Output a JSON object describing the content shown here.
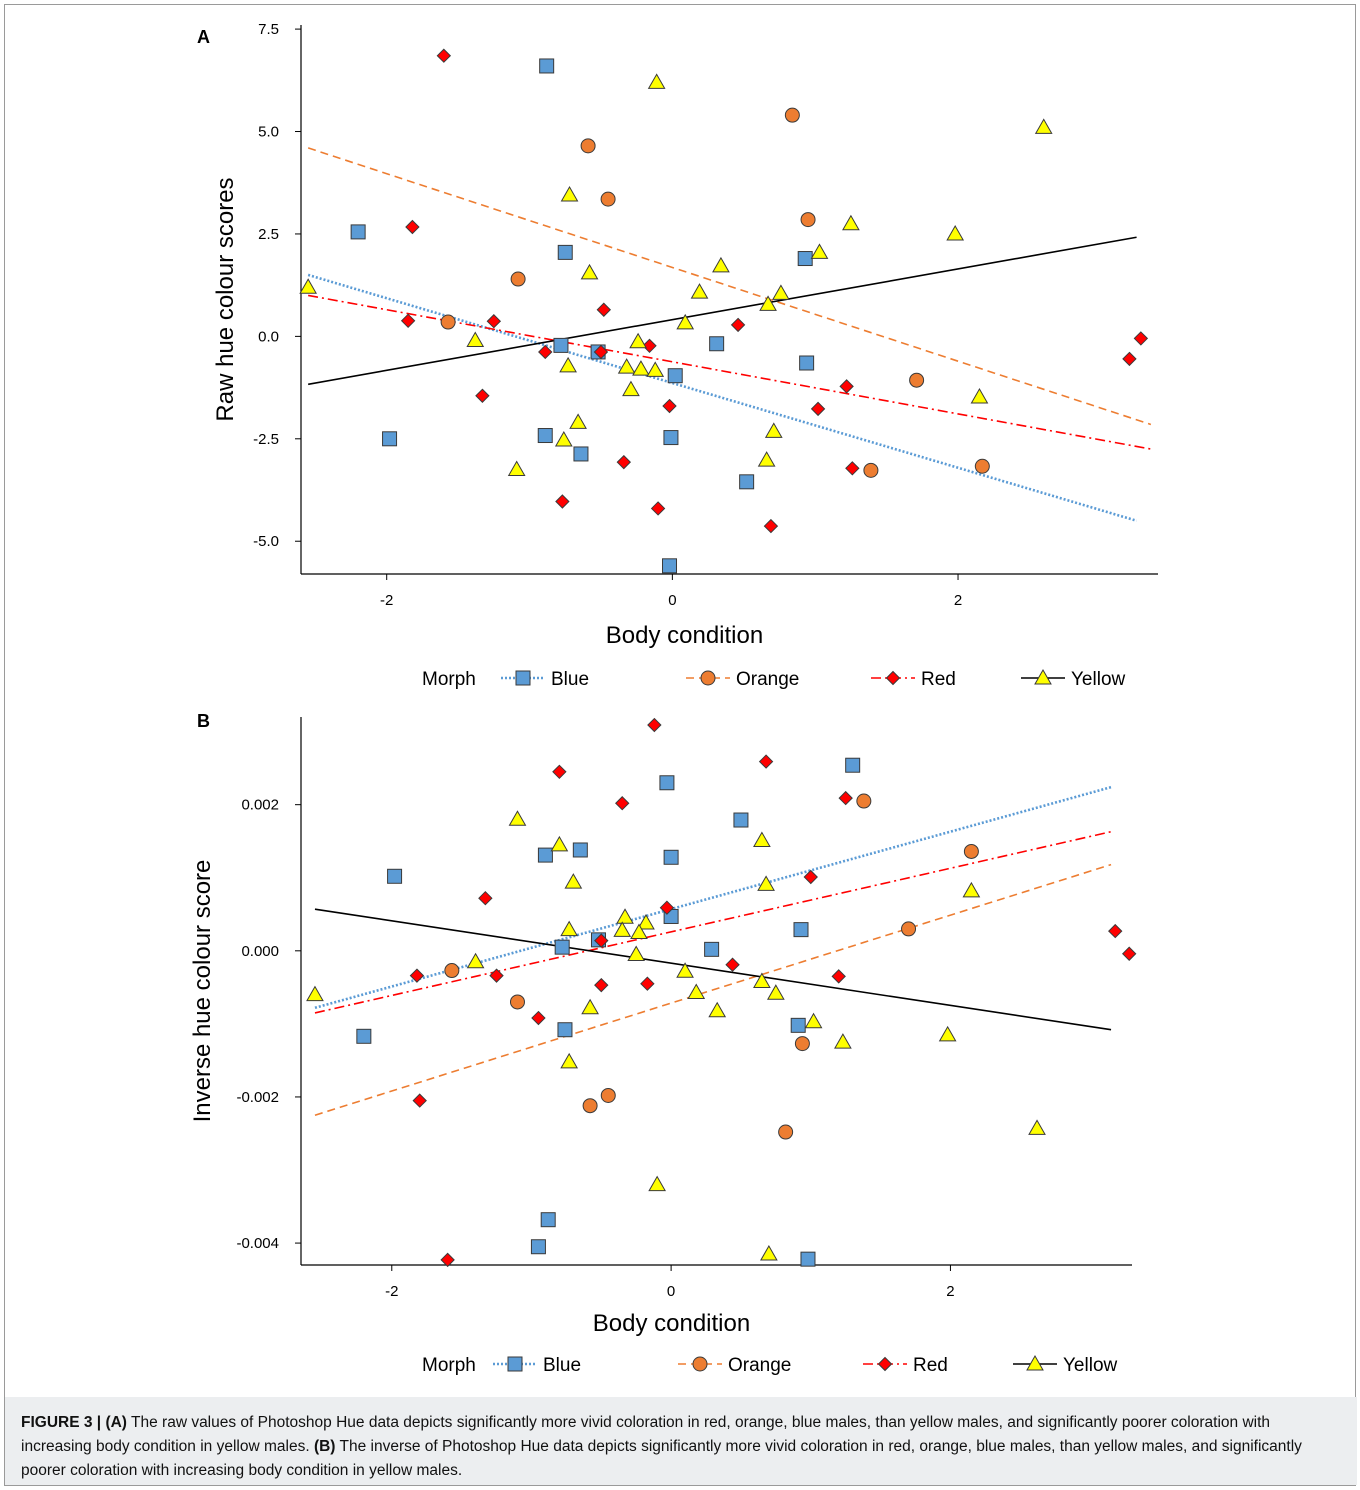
{
  "figure": {
    "caption": {
      "label": "FIGURE 3 |",
      "a_tag": "(A)",
      "a_text": "The raw values of Photoshop Hue data depicts significantly more vivid coloration in red, orange, blue males, than yellow males, and significantly poorer coloration with increasing body condition in yellow males.",
      "b_tag": "(B)",
      "b_text": "The inverse of Photoshop Hue data depicts significantly more vivid coloration in red, orange, blue males, than yellow males, and significantly poorer coloration with increasing body condition in yellow males."
    }
  },
  "colors": {
    "Blue": "#5b9bd5",
    "Orange": "#ed7d31",
    "Red": "#ff0000",
    "Yellow": "#000000",
    "blue_fill": "#5b9bd5",
    "orange_fill": "#ed7d31",
    "red_fill": "#ff0000",
    "yellow_fill": "#ffff00"
  },
  "chart_data": [
    {
      "type": "scatter",
      "panel": "A",
      "xlabel": "Body condition",
      "ylabel": "Raw hue colour scores",
      "xlim": [
        -2.6,
        3.4
      ],
      "ylim": [
        -5.8,
        7.6
      ],
      "xticks": [
        -2,
        0,
        2
      ],
      "yticks": [
        7.5,
        5.0,
        2.5,
        0.0,
        -2.5,
        -5.0
      ],
      "ytick_labels": [
        "7.5",
        "5.0",
        "2.5",
        "0.0",
        "-2.5",
        "-5.0"
      ],
      "legend_title": "Morph",
      "legend_position": "bottom",
      "series": [
        {
          "name": "Blue",
          "marker": "square",
          "line": "dotted",
          "points": [
            [
              -0.88,
              6.6
            ],
            [
              -2.2,
              2.55
            ],
            [
              -0.75,
              2.05
            ],
            [
              0.93,
              1.9
            ],
            [
              -0.78,
              -0.22
            ],
            [
              -0.52,
              -0.38
            ],
            [
              0.31,
              -0.18
            ],
            [
              0.94,
              -0.65
            ],
            [
              0.02,
              -0.96
            ],
            [
              -1.98,
              -2.5
            ],
            [
              -0.89,
              -2.42
            ],
            [
              -0.01,
              -2.47
            ],
            [
              -0.64,
              -2.87
            ],
            [
              0.52,
              -3.55
            ],
            [
              -0.02,
              -5.6
            ]
          ],
          "trend": [
            [
              -2.55,
              1.5
            ],
            [
              3.25,
              -4.5
            ]
          ]
        },
        {
          "name": "Orange",
          "marker": "circle",
          "line": "dashed",
          "points": [
            [
              0.84,
              5.4
            ],
            [
              -0.59,
              4.65
            ],
            [
              -0.45,
              3.35
            ],
            [
              0.95,
              2.85
            ],
            [
              -1.08,
              1.4
            ],
            [
              -1.57,
              0.35
            ],
            [
              1.71,
              -1.07
            ],
            [
              1.39,
              -3.27
            ],
            [
              2.17,
              -3.17
            ]
          ],
          "trend": [
            [
              -2.55,
              4.6
            ],
            [
              3.35,
              -2.15
            ]
          ]
        },
        {
          "name": "Red",
          "marker": "diamond",
          "line": "dashdot",
          "points": [
            [
              -1.6,
              6.85
            ],
            [
              -1.82,
              2.67
            ],
            [
              -1.85,
              0.38
            ],
            [
              -1.25,
              0.37
            ],
            [
              -0.48,
              0.65
            ],
            [
              -0.5,
              -0.38
            ],
            [
              -0.89,
              -0.38
            ],
            [
              -0.16,
              -0.23
            ],
            [
              0.46,
              0.28
            ],
            [
              -1.33,
              -1.45
            ],
            [
              -0.02,
              -1.7
            ],
            [
              1.02,
              -1.77
            ],
            [
              1.22,
              -1.22
            ],
            [
              -0.77,
              -4.03
            ],
            [
              -0.1,
              -4.2
            ],
            [
              -0.34,
              -3.07
            ],
            [
              1.26,
              -3.22
            ],
            [
              0.69,
              -4.63
            ],
            [
              3.2,
              -0.55
            ],
            [
              3.28,
              -0.05
            ]
          ],
          "trend": [
            [
              -2.55,
              1.0
            ],
            [
              3.35,
              -2.75
            ]
          ]
        },
        {
          "name": "Yellow",
          "marker": "triangle",
          "line": "solid",
          "points": [
            [
              -0.11,
              6.2
            ],
            [
              2.6,
              5.1
            ],
            [
              -0.72,
              3.45
            ],
            [
              1.25,
              2.75
            ],
            [
              1.98,
              2.5
            ],
            [
              1.03,
              2.05
            ],
            [
              -0.58,
              1.55
            ],
            [
              0.34,
              1.72
            ],
            [
              0.19,
              1.08
            ],
            [
              0.76,
              1.05
            ],
            [
              0.67,
              0.78
            ],
            [
              0.09,
              0.33
            ],
            [
              -2.55,
              1.2
            ],
            [
              -1.38,
              -0.1
            ],
            [
              -0.24,
              -0.13
            ],
            [
              -0.73,
              -0.72
            ],
            [
              -0.32,
              -0.75
            ],
            [
              -0.22,
              -0.8
            ],
            [
              -0.12,
              -0.83
            ],
            [
              -0.29,
              -1.3
            ],
            [
              -0.66,
              -2.1
            ],
            [
              -0.76,
              -2.53
            ],
            [
              0.71,
              -2.32
            ],
            [
              0.66,
              -3.02
            ],
            [
              -1.09,
              -3.25
            ],
            [
              2.15,
              -1.48
            ]
          ],
          "trend": [
            [
              -2.55,
              -1.17
            ],
            [
              3.25,
              2.42
            ]
          ]
        }
      ]
    },
    {
      "type": "scatter",
      "panel": "B",
      "xlabel": "Body condition",
      "ylabel": "Inverse hue colour score",
      "xlim": [
        -2.65,
        3.3
      ],
      "ylim": [
        -0.0043,
        0.0032
      ],
      "xticks": [
        -2,
        0,
        2
      ],
      "yticks": [
        0.002,
        0.0,
        -0.002,
        -0.004
      ],
      "ytick_labels": [
        "0.002",
        "0.000",
        "-0.002",
        "-0.004"
      ],
      "legend_title": "Morph",
      "legend_position": "bottom",
      "series": [
        {
          "name": "Blue",
          "marker": "square",
          "line": "dotted",
          "points": [
            [
              1.3,
              0.00254
            ],
            [
              -0.03,
              0.0023
            ],
            [
              0.5,
              0.00179
            ],
            [
              -0.9,
              0.00131
            ],
            [
              -0.65,
              0.00138
            ],
            [
              0.0,
              0.00128
            ],
            [
              -1.98,
              0.00102
            ],
            [
              0.0,
              0.00047
            ],
            [
              -0.52,
              0.00015
            ],
            [
              -0.78,
              5e-05
            ],
            [
              0.29,
              2e-05
            ],
            [
              0.93,
              0.00029
            ],
            [
              -2.2,
              -0.00117
            ],
            [
              -0.76,
              -0.00108
            ],
            [
              0.91,
              -0.00102
            ],
            [
              -0.88,
              -0.00368
            ],
            [
              -0.95,
              -0.00405
            ],
            [
              0.98,
              -0.00422
            ]
          ],
          "trend": [
            [
              -2.55,
              -0.00078
            ],
            [
              3.15,
              0.00224
            ]
          ]
        },
        {
          "name": "Orange",
          "marker": "circle",
          "line": "dashed",
          "points": [
            [
              1.38,
              0.00205
            ],
            [
              2.15,
              0.00136
            ],
            [
              1.7,
              0.0003
            ],
            [
              -1.57,
              -0.00027
            ],
            [
              -1.1,
              -0.0007
            ],
            [
              0.94,
              -0.00127
            ],
            [
              -0.58,
              -0.00212
            ],
            [
              -0.45,
              -0.00198
            ],
            [
              0.82,
              -0.00248
            ]
          ],
          "trend": [
            [
              -2.55,
              -0.00225
            ],
            [
              3.15,
              0.00118
            ]
          ]
        },
        {
          "name": "Red",
          "marker": "diamond",
          "line": "dashdot",
          "points": [
            [
              -0.12,
              0.00309
            ],
            [
              0.68,
              0.00259
            ],
            [
              -0.8,
              0.00245
            ],
            [
              1.25,
              0.00209
            ],
            [
              -0.35,
              0.00202
            ],
            [
              1.0,
              0.00101
            ],
            [
              -1.33,
              0.00072
            ],
            [
              -0.03,
              0.00059
            ],
            [
              -0.5,
              0.00014
            ],
            [
              -1.82,
              -0.00034
            ],
            [
              -1.25,
              -0.00034
            ],
            [
              0.44,
              -0.00019
            ],
            [
              1.2,
              -0.00035
            ],
            [
              -0.17,
              -0.00045
            ],
            [
              -0.5,
              -0.00047
            ],
            [
              -0.95,
              -0.00092
            ],
            [
              -1.8,
              -0.00205
            ],
            [
              3.18,
              0.00027
            ],
            [
              3.28,
              -4e-05
            ],
            [
              -1.6,
              -0.00423
            ]
          ],
          "trend": [
            [
              -2.55,
              -0.00085
            ],
            [
              3.15,
              0.00163
            ]
          ]
        },
        {
          "name": "Yellow",
          "marker": "triangle",
          "line": "solid",
          "points": [
            [
              -1.1,
              0.0018
            ],
            [
              0.65,
              0.00151
            ],
            [
              -0.8,
              0.00145
            ],
            [
              -0.7,
              0.00094
            ],
            [
              0.68,
              0.00091
            ],
            [
              2.15,
              0.00082
            ],
            [
              -0.33,
              0.00046
            ],
            [
              -0.18,
              0.00038
            ],
            [
              -0.73,
              0.00029
            ],
            [
              -0.35,
              0.00028
            ],
            [
              -0.23,
              0.00025
            ],
            [
              -1.4,
              -0.00015
            ],
            [
              -0.25,
              -5e-05
            ],
            [
              0.1,
              -0.00028
            ],
            [
              0.65,
              -0.00042
            ],
            [
              -2.55,
              -0.0006
            ],
            [
              0.18,
              -0.00057
            ],
            [
              0.75,
              -0.00058
            ],
            [
              -0.58,
              -0.00078
            ],
            [
              0.33,
              -0.00082
            ],
            [
              1.02,
              -0.00097
            ],
            [
              1.23,
              -0.00125
            ],
            [
              1.98,
              -0.00115
            ],
            [
              -0.73,
              -0.00152
            ],
            [
              2.62,
              -0.00243
            ],
            [
              -0.1,
              -0.0032
            ],
            [
              0.7,
              -0.00415
            ]
          ],
          "trend": [
            [
              -2.55,
              0.00057
            ],
            [
              3.15,
              -0.00108
            ]
          ]
        }
      ]
    }
  ]
}
